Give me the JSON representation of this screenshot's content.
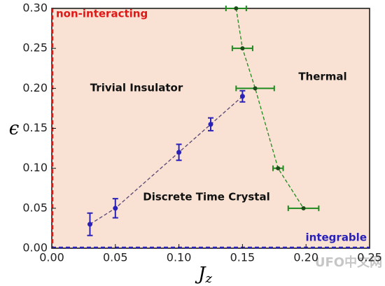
{
  "chart_data": {
    "type": "scatter",
    "x_label": {
      "main": "J",
      "sub": "z"
    },
    "y_label": "ϵ",
    "xlim": [
      0,
      0.25
    ],
    "ylim": [
      0,
      0.3
    ],
    "xticks": [
      {
        "value": 0,
        "label": "0.00"
      },
      {
        "value": 0.05,
        "label": "0.05"
      },
      {
        "value": 0.1,
        "label": "0.10"
      },
      {
        "value": 0.15,
        "label": "0.15"
      },
      {
        "value": 0.2,
        "label": "0.20"
      },
      {
        "value": 0.25,
        "label": "0.25"
      }
    ],
    "yticks": [
      {
        "value": 0,
        "label": "0.00"
      },
      {
        "value": 0.05,
        "label": "0.05"
      },
      {
        "value": 0.1,
        "label": "0.10"
      },
      {
        "value": 0.15,
        "label": "0.15"
      },
      {
        "value": 0.2,
        "label": "0.20"
      },
      {
        "value": 0.25,
        "label": "0.25"
      },
      {
        "value": 0.3,
        "label": "0.30"
      }
    ],
    "series": [
      {
        "color": "#2a22b8",
        "x": [
          0.03,
          0.05,
          0.1,
          0.125,
          0.15
        ],
        "values": [
          0.03,
          0.05,
          0.12,
          0.155,
          0.19
        ],
        "errors": [
          0.014,
          0.012,
          0.01,
          0.008,
          0.007
        ]
      },
      {
        "color": "#1f8a1f",
        "x": [
          0.145,
          0.15,
          0.16,
          0.178,
          0.198
        ],
        "values": [
          0.3,
          0.25,
          0.2,
          0.1,
          0.05
        ],
        "x_errors": [
          0.008,
          0.008,
          0.015,
          0.004,
          0.012
        ]
      }
    ],
    "annotations": {
      "non_interacting": "non-interacting",
      "integrable": "integrable",
      "trivial": "Trivial Insulator",
      "thermal": "Thermal",
      "dtc": "Discrete Time Crystal"
    },
    "watermark": "UFO中文网"
  }
}
